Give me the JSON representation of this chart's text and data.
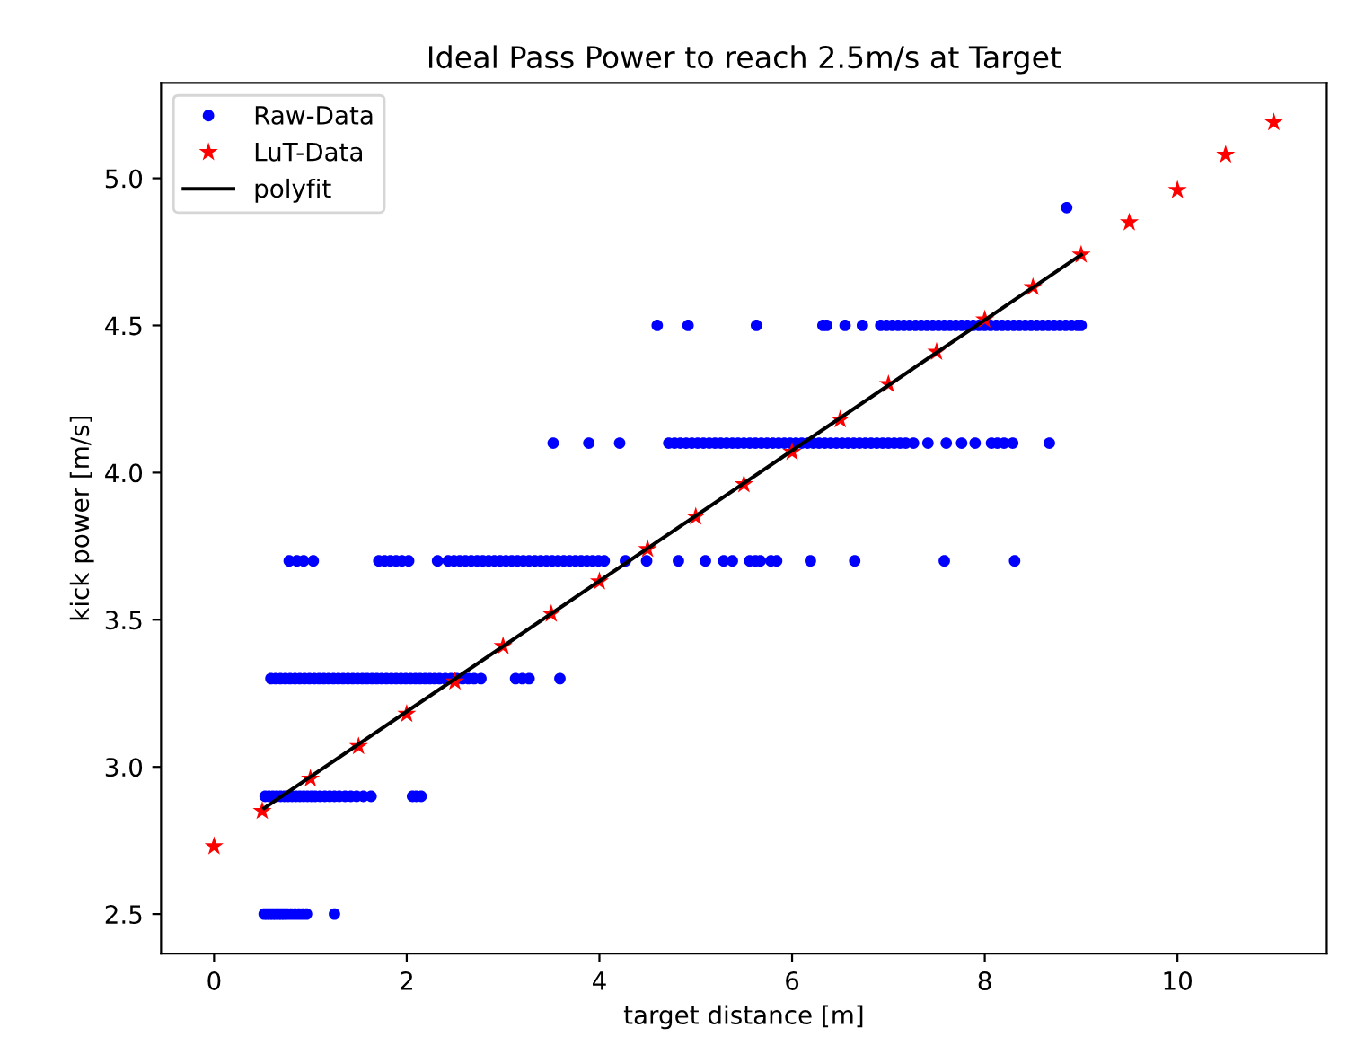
{
  "chart_data": {
    "type": "scatter",
    "title": "Ideal Pass Power to reach 2.5m/s at Target",
    "xlabel": "target distance [m]",
    "ylabel": "kick power [m/s]",
    "xlim": [
      -0.55,
      11.55
    ],
    "ylim": [
      2.366,
      5.324
    ],
    "xticks": [
      0,
      2,
      4,
      6,
      8,
      10
    ],
    "yticks": [
      2.5,
      {
        "value": 3,
        "label": "3.0"
      },
      3.5,
      {
        "value": 4,
        "label": "4.0"
      },
      4.5,
      {
        "value": 5,
        "label": "5.0"
      }
    ],
    "legend": "top left",
    "series": [
      {
        "name": "Raw-Data",
        "marker": "circle",
        "color": "#0000ff",
        "x": [
          0.52,
          0.55,
          0.58,
          0.61,
          0.64,
          0.67,
          0.7,
          0.73,
          0.76,
          0.8,
          0.84,
          0.88,
          0.92,
          0.96,
          1.25,
          0.53,
          0.57,
          0.61,
          0.65,
          0.69,
          0.73,
          0.77,
          0.81,
          0.85,
          0.89,
          0.93,
          0.97,
          1.01,
          1.05,
          1.1,
          1.15,
          1.2,
          1.25,
          1.3,
          1.36,
          1.42,
          1.48,
          1.55,
          1.63,
          2.06,
          2.1,
          2.15,
          0.59,
          0.64,
          0.69,
          0.74,
          0.79,
          0.84,
          0.89,
          0.94,
          0.99,
          1.04,
          1.09,
          1.14,
          1.19,
          1.24,
          1.29,
          1.34,
          1.39,
          1.44,
          1.49,
          1.54,
          1.59,
          1.64,
          1.69,
          1.74,
          1.79,
          1.84,
          1.89,
          1.94,
          1.99,
          2.04,
          2.09,
          2.14,
          2.19,
          2.24,
          2.29,
          2.34,
          2.4,
          2.46,
          2.52,
          2.58,
          2.64,
          2.7,
          2.77,
          3.13,
          3.2,
          3.27,
          3.59,
          0.78,
          0.86,
          0.93,
          1.03,
          1.71,
          1.77,
          1.83,
          1.89,
          1.95,
          2.02,
          2.32,
          2.43,
          2.49,
          2.55,
          2.61,
          2.67,
          2.73,
          2.79,
          2.85,
          2.91,
          2.97,
          3.03,
          3.09,
          3.15,
          3.21,
          3.27,
          3.33,
          3.39,
          3.45,
          3.51,
          3.57,
          3.63,
          3.69,
          3.75,
          3.81,
          3.87,
          3.93,
          3.99,
          4.05,
          4.27,
          4.49,
          4.82,
          5.1,
          5.29,
          5.38,
          5.56,
          5.62,
          5.67,
          5.78,
          5.84,
          6.19,
          6.65,
          7.58,
          8.31,
          3.52,
          3.89,
          4.21,
          4.72,
          4.78,
          4.84,
          4.9,
          4.96,
          5.02,
          5.08,
          5.14,
          5.2,
          5.26,
          5.32,
          5.38,
          5.44,
          5.5,
          5.56,
          5.62,
          5.68,
          5.74,
          5.8,
          5.86,
          5.92,
          5.98,
          6.04,
          6.1,
          6.16,
          6.22,
          6.28,
          6.34,
          6.4,
          6.46,
          6.52,
          6.58,
          6.64,
          6.7,
          6.76,
          6.82,
          6.88,
          6.94,
          7.0,
          7.06,
          7.12,
          7.18,
          7.26,
          7.41,
          7.6,
          7.76,
          7.9,
          8.07,
          8.13,
          8.2,
          8.29,
          8.67,
          4.6,
          4.92,
          5.63,
          6.32,
          6.36,
          6.55,
          6.73,
          6.92,
          6.98,
          7.04,
          7.1,
          7.16,
          7.22,
          7.28,
          7.34,
          7.4,
          7.46,
          7.52,
          7.58,
          7.64,
          7.7,
          7.76,
          7.82,
          7.88,
          7.94,
          8.0,
          8.06,
          8.12,
          8.18,
          8.24,
          8.3,
          8.36,
          8.42,
          8.48,
          8.54,
          8.6,
          8.66,
          8.72,
          8.78,
          8.84,
          8.9,
          8.96,
          9.0,
          8.85
        ],
        "values": [
          2.5,
          2.5,
          2.5,
          2.5,
          2.5,
          2.5,
          2.5,
          2.5,
          2.5,
          2.5,
          2.5,
          2.5,
          2.5,
          2.5,
          2.5,
          2.9,
          2.9,
          2.9,
          2.9,
          2.9,
          2.9,
          2.9,
          2.9,
          2.9,
          2.9,
          2.9,
          2.9,
          2.9,
          2.9,
          2.9,
          2.9,
          2.9,
          2.9,
          2.9,
          2.9,
          2.9,
          2.9,
          2.9,
          2.9,
          2.9,
          2.9,
          2.9,
          3.3,
          3.3,
          3.3,
          3.3,
          3.3,
          3.3,
          3.3,
          3.3,
          3.3,
          3.3,
          3.3,
          3.3,
          3.3,
          3.3,
          3.3,
          3.3,
          3.3,
          3.3,
          3.3,
          3.3,
          3.3,
          3.3,
          3.3,
          3.3,
          3.3,
          3.3,
          3.3,
          3.3,
          3.3,
          3.3,
          3.3,
          3.3,
          3.3,
          3.3,
          3.3,
          3.3,
          3.3,
          3.3,
          3.3,
          3.3,
          3.3,
          3.3,
          3.3,
          3.3,
          3.3,
          3.3,
          3.3,
          3.7,
          3.7,
          3.7,
          3.7,
          3.7,
          3.7,
          3.7,
          3.7,
          3.7,
          3.7,
          3.7,
          3.7,
          3.7,
          3.7,
          3.7,
          3.7,
          3.7,
          3.7,
          3.7,
          3.7,
          3.7,
          3.7,
          3.7,
          3.7,
          3.7,
          3.7,
          3.7,
          3.7,
          3.7,
          3.7,
          3.7,
          3.7,
          3.7,
          3.7,
          3.7,
          3.7,
          3.7,
          3.7,
          3.7,
          3.7,
          3.7,
          3.7,
          3.7,
          3.7,
          3.7,
          3.7,
          3.7,
          3.7,
          3.7,
          3.7,
          3.7,
          3.7,
          3.7,
          3.7,
          4.1,
          4.1,
          4.1,
          4.1,
          4.1,
          4.1,
          4.1,
          4.1,
          4.1,
          4.1,
          4.1,
          4.1,
          4.1,
          4.1,
          4.1,
          4.1,
          4.1,
          4.1,
          4.1,
          4.1,
          4.1,
          4.1,
          4.1,
          4.1,
          4.1,
          4.1,
          4.1,
          4.1,
          4.1,
          4.1,
          4.1,
          4.1,
          4.1,
          4.1,
          4.1,
          4.1,
          4.1,
          4.1,
          4.1,
          4.1,
          4.1,
          4.1,
          4.1,
          4.1,
          4.1,
          4.1,
          4.1,
          4.1,
          4.1,
          4.1,
          4.1,
          4.1,
          4.1,
          4.1,
          4.1,
          4.5,
          4.5,
          4.5,
          4.5,
          4.5,
          4.5,
          4.5,
          4.5,
          4.5,
          4.5,
          4.5,
          4.5,
          4.5,
          4.5,
          4.5,
          4.5,
          4.5,
          4.5,
          4.5,
          4.5,
          4.5,
          4.5,
          4.5,
          4.5,
          4.5,
          4.5,
          4.5,
          4.5,
          4.5,
          4.5,
          4.5,
          4.5,
          4.5,
          4.5,
          4.5,
          4.5,
          4.5,
          4.5,
          4.5,
          4.5,
          4.5,
          4.5,
          4.5,
          4.9
        ]
      },
      {
        "name": "LuT-Data",
        "marker": "star",
        "color": "#ff0000",
        "x": [
          0,
          0.5,
          1,
          1.5,
          2,
          2.5,
          3,
          3.5,
          4,
          4.5,
          5,
          5.5,
          6,
          6.5,
          7,
          7.5,
          8,
          8.5,
          9,
          9.5,
          10,
          10.5,
          11
        ],
        "values": [
          2.73,
          2.85,
          2.96,
          3.07,
          3.18,
          3.29,
          3.41,
          3.52,
          3.63,
          3.74,
          3.85,
          3.96,
          4.07,
          4.18,
          4.3,
          4.41,
          4.52,
          4.63,
          4.74,
          4.85,
          4.96,
          5.08,
          5.19
        ]
      },
      {
        "name": "polyfit",
        "type": "line",
        "marker": "none",
        "line_style": "solid",
        "color": "#000000",
        "x": [
          0.52,
          9.0
        ],
        "values": [
          2.86,
          4.74
        ]
      }
    ]
  }
}
